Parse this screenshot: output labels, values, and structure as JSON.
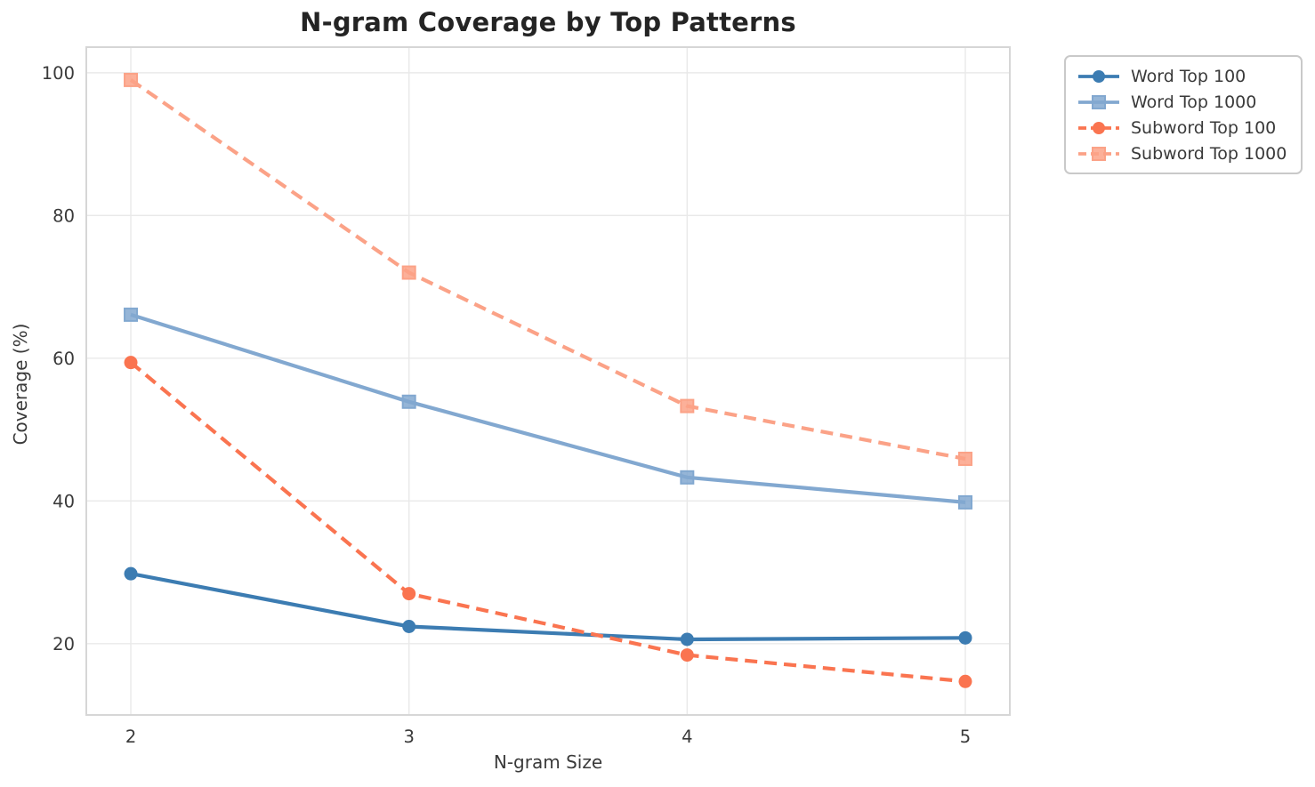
{
  "title": "N-gram Coverage by Top Patterns",
  "colors": {
    "background": "#ffffff",
    "grid": "#e9e9e9",
    "spine": "#d6d6d6",
    "title_text": "#242424",
    "axis_text": "#3a3a3a",
    "legend_border": "#c9c9c9",
    "word_top_100": "#3c7cb2",
    "word_top_1000": "#82a8d0",
    "subword_top_100": "#fa7450",
    "subword_top_1000": "#fba287"
  },
  "chart_data": {
    "type": "line",
    "title": "N-gram Coverage by Top Patterns",
    "xlabel": "N-gram Size",
    "ylabel": "Coverage (%)",
    "x": [
      2,
      3,
      4,
      5
    ],
    "xticks": [
      "2",
      "3",
      "4",
      "5"
    ],
    "yticks": [
      20,
      40,
      60,
      80,
      100
    ],
    "xlim": [
      1.84,
      5.16
    ],
    "ylim": [
      10.0,
      103.6
    ],
    "grid": true,
    "legend_position": "outside-top-right",
    "series": [
      {
        "name": "Word Top 100",
        "values": [
          29.8,
          22.4,
          20.6,
          20.8
        ],
        "color": "#3c7cb2",
        "line_style": "solid",
        "marker": "circle"
      },
      {
        "name": "Word Top 1000",
        "values": [
          66.1,
          53.9,
          43.3,
          39.8
        ],
        "color": "#82a8d0",
        "line_style": "solid",
        "marker": "square"
      },
      {
        "name": "Subword Top 100",
        "values": [
          59.4,
          27.0,
          18.4,
          14.7
        ],
        "color": "#fa7450",
        "line_style": "dashed",
        "marker": "circle"
      },
      {
        "name": "Subword Top 1000",
        "values": [
          99.0,
          72.0,
          53.3,
          45.9
        ],
        "color": "#fba287",
        "line_style": "dashed",
        "marker": "square"
      }
    ]
  }
}
